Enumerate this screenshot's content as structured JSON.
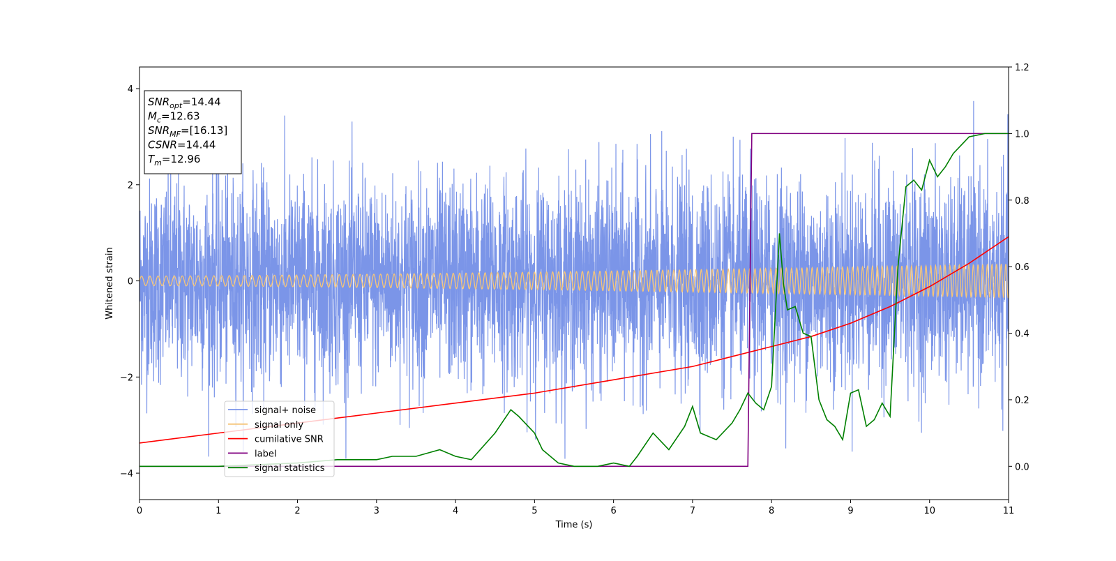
{
  "chart_data": {
    "type": "line",
    "title": "",
    "xlabel": "Time (s)",
    "ylabel": "Whitened strain",
    "ylabel_right": "",
    "xlim": [
      0,
      11
    ],
    "ylim": [
      -4.55,
      4.45
    ],
    "ylim_right": [
      -0.1,
      1.2
    ],
    "x_ticks": [
      "0",
      "1",
      "2",
      "3",
      "4",
      "5",
      "6",
      "7",
      "8",
      "9",
      "10",
      "11"
    ],
    "y_ticks": [
      "4",
      "2",
      "0",
      "−2",
      "−4"
    ],
    "y_right_ticks": [
      "1.2",
      "1.0",
      "0.8",
      "0.6",
      "0.4",
      "0.2",
      "0.0"
    ],
    "grid": false,
    "legend_position": "lower-left",
    "stats_box": {
      "lines": [
        {
          "symbol": "SNR",
          "subscript": "opt",
          "value": "=14.44"
        },
        {
          "symbol": "M",
          "subscript": "c",
          "value": "=12.63"
        },
        {
          "symbol": "SNR",
          "subscript": "MF",
          "value": "=[16.13]"
        },
        {
          "symbol": "CSNR",
          "subscript": "",
          "value": "=14.44"
        },
        {
          "symbol": "T",
          "subscript": "m",
          "value": "=12.96"
        }
      ]
    },
    "series": [
      {
        "name": "signal+ noise",
        "color": "#7b95e8",
        "axis": "left",
        "description_range": [
          -3.7,
          4.0
        ]
      },
      {
        "name": "signal only",
        "color": "#f5c57a",
        "axis": "left",
        "amplitude_start": 0.1,
        "amplitude_end": 0.35
      },
      {
        "name": "cumilative SNR",
        "color": "#ff0000",
        "axis": "right",
        "x": [
          0,
          1,
          2,
          3,
          4,
          5,
          6,
          7,
          7.5,
          8,
          8.5,
          9,
          9.5,
          10,
          10.5,
          11
        ],
        "y": [
          0.07,
          0.1,
          0.13,
          0.16,
          0.19,
          0.22,
          0.26,
          0.3,
          0.33,
          0.36,
          0.39,
          0.43,
          0.48,
          0.54,
          0.61,
          0.69
        ]
      },
      {
        "name": "label",
        "color": "#800080",
        "axis": "right",
        "x": [
          0,
          7.7,
          7.75,
          11
        ],
        "y": [
          0.0,
          0.0,
          1.0,
          1.0
        ]
      },
      {
        "name": "signal statistics",
        "color": "#008000",
        "axis": "right",
        "x": [
          0,
          1,
          2,
          2.5,
          3,
          3.2,
          3.5,
          3.8,
          4,
          4.2,
          4.5,
          4.7,
          4.8,
          5,
          5.1,
          5.3,
          5.5,
          5.8,
          6,
          6.2,
          6.3,
          6.5,
          6.7,
          6.9,
          7.0,
          7.1,
          7.3,
          7.5,
          7.6,
          7.7,
          7.8,
          7.9,
          8.0,
          8.1,
          8.15,
          8.2,
          8.3,
          8.4,
          8.5,
          8.6,
          8.7,
          8.8,
          8.9,
          9.0,
          9.1,
          9.2,
          9.3,
          9.4,
          9.5,
          9.6,
          9.7,
          9.8,
          9.9,
          10.0,
          10.1,
          10.2,
          10.3,
          10.5,
          10.7,
          11
        ],
        "y": [
          0.0,
          0.0,
          0.01,
          0.02,
          0.02,
          0.03,
          0.03,
          0.05,
          0.03,
          0.02,
          0.1,
          0.17,
          0.15,
          0.1,
          0.05,
          0.01,
          0.0,
          0.0,
          0.01,
          0.0,
          0.03,
          0.1,
          0.05,
          0.12,
          0.18,
          0.1,
          0.08,
          0.13,
          0.17,
          0.22,
          0.19,
          0.17,
          0.24,
          0.7,
          0.55,
          0.47,
          0.48,
          0.4,
          0.39,
          0.2,
          0.14,
          0.12,
          0.08,
          0.22,
          0.23,
          0.12,
          0.14,
          0.19,
          0.15,
          0.6,
          0.84,
          0.86,
          0.83,
          0.92,
          0.87,
          0.9,
          0.94,
          0.99,
          1.0,
          1.0
        ]
      }
    ]
  }
}
